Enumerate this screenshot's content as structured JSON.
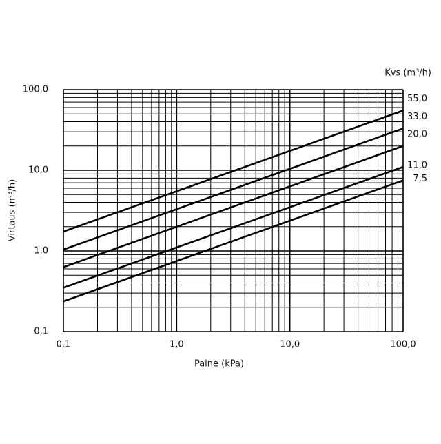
{
  "chart_data": {
    "type": "line",
    "xlabel": "Paine (kPa)",
    "ylabel": "Virtaus (m³/h)",
    "legend_title": "Kvs (m³/h)",
    "x": [
      0.1,
      100
    ],
    "series": [
      {
        "name": "55,0",
        "color": "#000000",
        "values": [
          1.74,
          55
        ]
      },
      {
        "name": "33,0",
        "color": "#000000",
        "values": [
          1.04,
          33
        ]
      },
      {
        "name": "20,0",
        "color": "#000000",
        "values": [
          0.63,
          20
        ]
      },
      {
        "name": "11,0",
        "color": "#000000",
        "values": [
          0.35,
          11
        ]
      },
      {
        "name": "7,5",
        "color": "#000000",
        "values": [
          0.237,
          7.5
        ]
      }
    ],
    "xlog": true,
    "ylog": true,
    "grid": true,
    "xlim": [
      0.1,
      100
    ],
    "ylim": [
      0.1,
      100
    ],
    "xticks": [
      {
        "value": 0.1,
        "label": "0,1"
      },
      {
        "value": 1,
        "label": "1,0"
      },
      {
        "value": 10,
        "label": "10,0"
      },
      {
        "value": 100,
        "label": "100,0"
      }
    ],
    "yticks": [
      {
        "value": 0.1,
        "label": "0,1"
      },
      {
        "value": 1,
        "label": "1,0"
      },
      {
        "value": 10,
        "label": "10,0"
      },
      {
        "value": 100,
        "label": "100,0"
      }
    ],
    "x_minor_ticks": [
      0.2,
      0.3,
      0.4,
      0.5,
      0.6,
      0.7,
      0.8,
      0.9,
      2,
      3,
      4,
      5,
      6,
      7,
      8,
      9,
      20,
      30,
      40,
      50,
      60,
      70,
      80,
      90
    ],
    "y_minor_ticks": [
      0.2,
      0.3,
      0.4,
      0.5,
      0.6,
      0.7,
      0.8,
      0.9,
      2,
      3,
      4,
      5,
      6,
      7,
      8,
      9,
      20,
      30,
      40,
      50,
      60,
      70,
      80,
      90
    ]
  }
}
